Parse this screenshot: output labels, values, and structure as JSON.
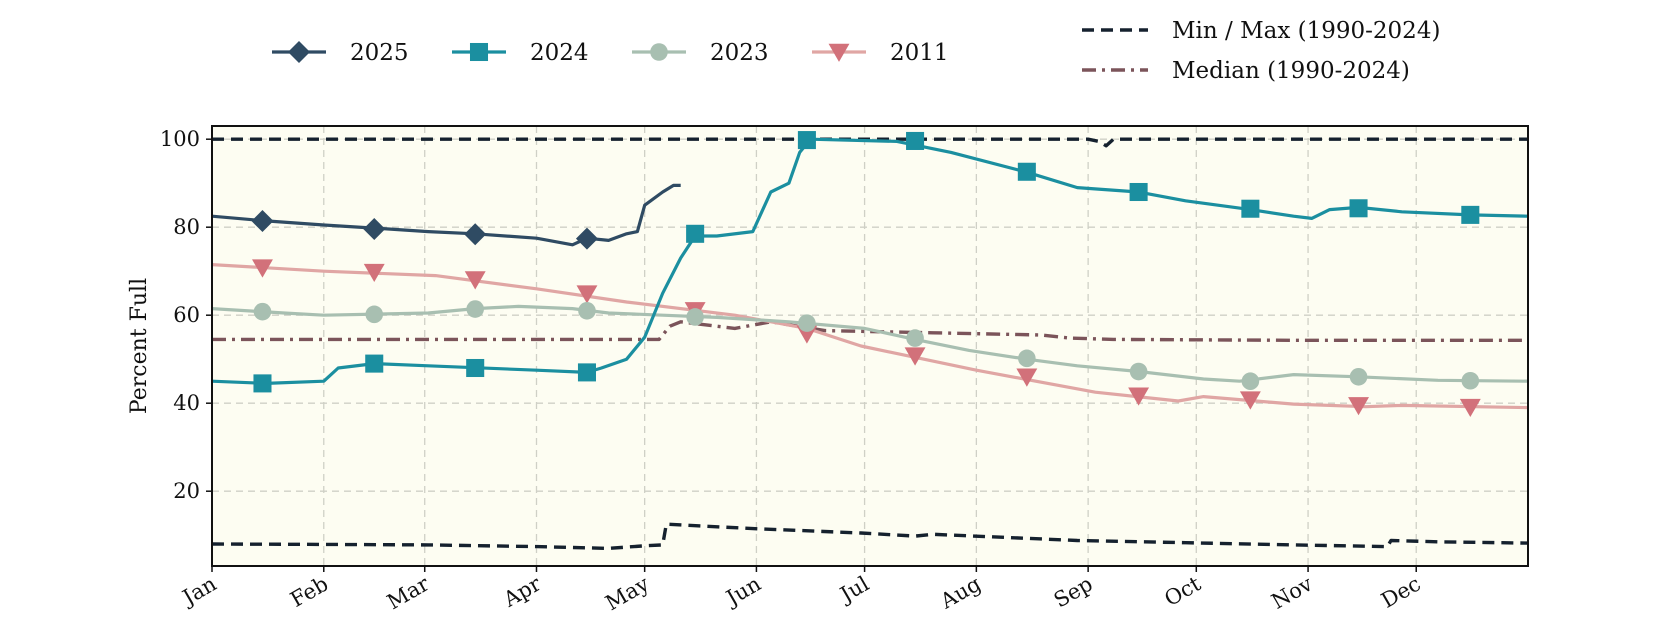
{
  "chart_data": {
    "type": "line",
    "title": "",
    "xlabel": "",
    "ylabel": "Percent Full",
    "x_range": [
      0,
      365
    ],
    "ylim": [
      3,
      103
    ],
    "y_ticks": [
      20,
      40,
      60,
      80,
      100
    ],
    "x_ticks": [
      {
        "day": 0,
        "label": "Jan"
      },
      {
        "day": 31,
        "label": "Feb"
      },
      {
        "day": 59,
        "label": "Mar"
      },
      {
        "day": 90,
        "label": "Apr"
      },
      {
        "day": 120,
        "label": "May"
      },
      {
        "day": 151,
        "label": "Jun"
      },
      {
        "day": 181,
        "label": "Jul"
      },
      {
        "day": 212,
        "label": "Aug"
      },
      {
        "day": 243,
        "label": "Sep"
      },
      {
        "day": 273,
        "label": "Oct"
      },
      {
        "day": 304,
        "label": "Nov"
      },
      {
        "day": 334,
        "label": "Dec"
      }
    ],
    "grid": true,
    "legend_placement": "top",
    "plot_background": "#fdfdf2",
    "series": [
      {
        "name": "Min / Max (1990-2024)",
        "color": "#15212e",
        "dash": "dashed",
        "marker": "none",
        "points": [
          [
            0,
            100
          ],
          [
            243,
            100
          ],
          [
            246,
            99.5
          ],
          [
            248,
            98.5
          ],
          [
            250,
            100
          ],
          [
            365,
            100
          ]
        ]
      },
      {
        "name": "",
        "color": "#15212e",
        "dash": "dashed",
        "marker": "none",
        "legend": false,
        "points": [
          [
            0,
            8
          ],
          [
            30,
            7.9
          ],
          [
            60,
            7.8
          ],
          [
            90,
            7.4
          ],
          [
            110,
            7
          ],
          [
            120,
            7.6
          ],
          [
            125,
            7.8
          ],
          [
            126,
            12.5
          ],
          [
            150,
            11.5
          ],
          [
            180,
            10.5
          ],
          [
            195,
            9.8
          ],
          [
            200,
            10.2
          ],
          [
            240,
            8.8
          ],
          [
            270,
            8.3
          ],
          [
            300,
            7.8
          ],
          [
            326,
            7.4
          ],
          [
            327,
            8.8
          ],
          [
            340,
            8.5
          ],
          [
            365,
            8.2
          ]
        ]
      },
      {
        "name": "Median (1990-2024)",
        "color": "#7b545a",
        "dash": "dashdot",
        "marker": "none",
        "points": [
          [
            0,
            54.5
          ],
          [
            124,
            54.5
          ],
          [
            127,
            57.5
          ],
          [
            130,
            58.5
          ],
          [
            145,
            57
          ],
          [
            155,
            58.5
          ],
          [
            170,
            56.5
          ],
          [
            200,
            56
          ],
          [
            230,
            55.5
          ],
          [
            238,
            54.8
          ],
          [
            250,
            54.5
          ],
          [
            300,
            54.3
          ],
          [
            365,
            54.3
          ]
        ]
      },
      {
        "name": "2011",
        "color": "#e0a6a4",
        "marker_color": "#d2717a",
        "dash": "solid",
        "marker": "triangle-down",
        "points": [
          [
            0,
            71.5
          ],
          [
            31,
            70
          ],
          [
            62,
            69
          ],
          [
            90,
            66
          ],
          [
            115,
            63
          ],
          [
            145,
            60
          ],
          [
            165,
            57
          ],
          [
            180,
            53
          ],
          [
            212,
            47.5
          ],
          [
            245,
            42.5
          ],
          [
            268,
            40.5
          ],
          [
            275,
            41.5
          ],
          [
            300,
            39.8
          ],
          [
            320,
            39.2
          ],
          [
            330,
            39.5
          ],
          [
            365,
            39
          ]
        ],
        "markers": [
          [
            14,
            70.8
          ],
          [
            45,
            69.8
          ],
          [
            73,
            68.1
          ],
          [
            104,
            64.9
          ],
          [
            134,
            61.1
          ],
          [
            165,
            55.8
          ],
          [
            195,
            50.8
          ],
          [
            226,
            46
          ],
          [
            257,
            41.7
          ],
          [
            288,
            40.8
          ],
          [
            318,
            39.5
          ],
          [
            349,
            39.1
          ]
        ]
      },
      {
        "name": "2023",
        "color": "#a8bfb1",
        "marker_color": "#a8bfb1",
        "dash": "solid",
        "marker": "circle",
        "points": [
          [
            0,
            61.5
          ],
          [
            20,
            60.5
          ],
          [
            31,
            60
          ],
          [
            60,
            60.5
          ],
          [
            73,
            61.5
          ],
          [
            85,
            62
          ],
          [
            100,
            61.5
          ],
          [
            110,
            60.5
          ],
          [
            125,
            60
          ],
          [
            140,
            59.5
          ],
          [
            160,
            58.5
          ],
          [
            181,
            57
          ],
          [
            195,
            54.5
          ],
          [
            210,
            52
          ],
          [
            226,
            50
          ],
          [
            240,
            48.5
          ],
          [
            257,
            47.2
          ],
          [
            275,
            45.5
          ],
          [
            285,
            45
          ],
          [
            300,
            46.5
          ],
          [
            318,
            46
          ],
          [
            340,
            45.2
          ],
          [
            365,
            45
          ]
        ],
        "markers": [
          [
            14,
            60.8
          ],
          [
            45,
            60.2
          ],
          [
            73,
            61.4
          ],
          [
            104,
            61
          ],
          [
            134,
            59.6
          ],
          [
            165,
            58.2
          ],
          [
            195,
            54.8
          ],
          [
            226,
            50.2
          ],
          [
            257,
            47.2
          ],
          [
            288,
            45
          ],
          [
            318,
            46
          ],
          [
            349,
            45.1
          ]
        ]
      },
      {
        "name": "2024",
        "color": "#1b8fa0",
        "marker_color": "#1b8fa0",
        "dash": "solid",
        "marker": "square",
        "points": [
          [
            0,
            45
          ],
          [
            15,
            44.5
          ],
          [
            31,
            45
          ],
          [
            35,
            48
          ],
          [
            45,
            49
          ],
          [
            60,
            48.5
          ],
          [
            90,
            47.5
          ],
          [
            104,
            47
          ],
          [
            108,
            48
          ],
          [
            115,
            50
          ],
          [
            120,
            55
          ],
          [
            125,
            65
          ],
          [
            130,
            73
          ],
          [
            134,
            78
          ],
          [
            140,
            78
          ],
          [
            150,
            79
          ],
          [
            155,
            88
          ],
          [
            160,
            90
          ],
          [
            163,
            97
          ],
          [
            166,
            100
          ],
          [
            190,
            99.5
          ],
          [
            205,
            97
          ],
          [
            226,
            92.5
          ],
          [
            240,
            89
          ],
          [
            257,
            88
          ],
          [
            270,
            86
          ],
          [
            288,
            84
          ],
          [
            300,
            82.5
          ],
          [
            305,
            82
          ],
          [
            310,
            84
          ],
          [
            318,
            84.5
          ],
          [
            330,
            83.5
          ],
          [
            349,
            82.8
          ],
          [
            365,
            82.5
          ]
        ],
        "markers": [
          [
            14,
            44.5
          ],
          [
            45,
            49
          ],
          [
            73,
            48
          ],
          [
            104,
            47
          ],
          [
            134,
            78.5
          ],
          [
            165,
            99.8
          ],
          [
            195,
            99.6
          ],
          [
            226,
            92.6
          ],
          [
            257,
            88
          ],
          [
            288,
            84.2
          ],
          [
            318,
            84.3
          ],
          [
            349,
            82.8
          ]
        ]
      },
      {
        "name": "2025",
        "color": "#2f4b63",
        "marker_color": "#2f4b63",
        "dash": "solid",
        "marker": "diamond",
        "points": [
          [
            0,
            82.5
          ],
          [
            14,
            81.5
          ],
          [
            31,
            80.5
          ],
          [
            45,
            79.8
          ],
          [
            60,
            79
          ],
          [
            73,
            78.5
          ],
          [
            90,
            77.5
          ],
          [
            100,
            76
          ],
          [
            104,
            77.5
          ],
          [
            110,
            77
          ],
          [
            115,
            78.5
          ],
          [
            118,
            79
          ],
          [
            120,
            85
          ],
          [
            125,
            88
          ],
          [
            128,
            89.5
          ],
          [
            130,
            89.5
          ]
        ],
        "markers": [
          [
            14,
            81.4
          ],
          [
            45,
            79.6
          ],
          [
            73,
            78.4
          ],
          [
            104,
            77.4
          ]
        ]
      }
    ]
  }
}
